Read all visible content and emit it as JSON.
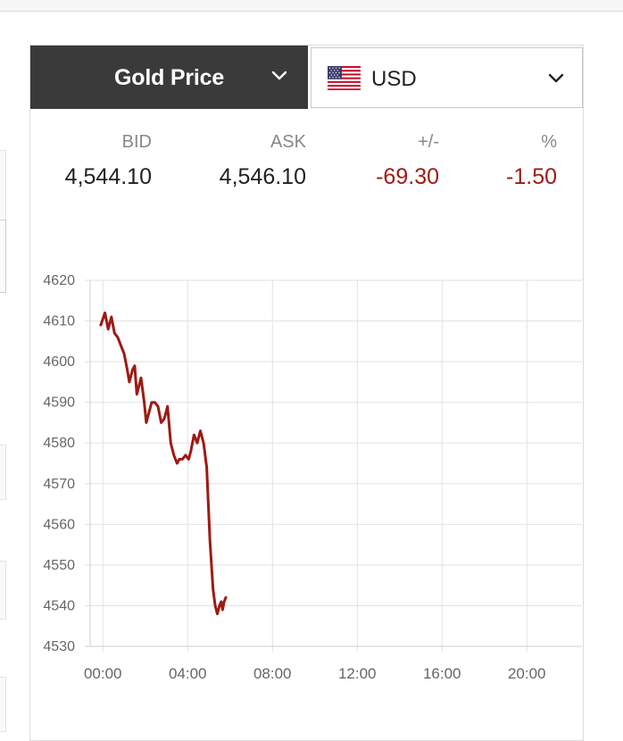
{
  "selector": {
    "metal": "Gold Price",
    "currency": "USD"
  },
  "quote": {
    "headers": [
      "BID",
      "ASK",
      "+/-",
      "%"
    ],
    "values": [
      "4,544.10",
      "4,546.10",
      "-69.30",
      "-1.50"
    ]
  },
  "colors": {
    "line": "#9e1a13",
    "negative": "#9e1a13",
    "header_bg": "#3a3a3a"
  },
  "icons": {
    "metal_dropdown": "chevron-down-icon",
    "currency_dropdown": "chevron-down-icon",
    "flag": "us-flag-icon"
  },
  "chart_data": {
    "type": "line",
    "title": "",
    "xlabel": "",
    "ylabel": "",
    "x_ticks": [
      "00:00",
      "04:00",
      "08:00",
      "12:00",
      "16:00",
      "20:00"
    ],
    "y_ticks": [
      4620,
      4610,
      4600,
      4590,
      4580,
      4570,
      4560,
      4550,
      4540,
      4530
    ],
    "ylim": [
      4530,
      4620
    ],
    "xlim_hours": [
      -0.6,
      22.6
    ],
    "grid": true,
    "series": [
      {
        "x_hours": [
          -0.1,
          0.1,
          0.25,
          0.4,
          0.55,
          0.7,
          0.85,
          1.0,
          1.15,
          1.25,
          1.4,
          1.5,
          1.6,
          1.8,
          1.95,
          2.05,
          2.2,
          2.3,
          2.45,
          2.6,
          2.75,
          2.9,
          3.05,
          3.2,
          3.35,
          3.5,
          3.6,
          3.75,
          3.9,
          4.05,
          4.15,
          4.3,
          4.45,
          4.6,
          4.75,
          4.9,
          5.05,
          5.2,
          5.3,
          5.4,
          5.5,
          5.58,
          5.65,
          5.72,
          5.8
        ],
        "y": [
          4609,
          4612,
          4608,
          4611,
          4607,
          4606,
          4604,
          4602,
          4598,
          4595,
          4598,
          4599,
          4592,
          4596,
          4590,
          4585,
          4588,
          4590,
          4590,
          4589,
          4585,
          4586,
          4589,
          4580,
          4577,
          4575,
          4576,
          4576,
          4577,
          4576,
          4578,
          4582,
          4580,
          4583,
          4580,
          4574,
          4556,
          4544,
          4540,
          4538,
          4540,
          4541,
          4539,
          4541,
          4542
        ]
      }
    ]
  }
}
